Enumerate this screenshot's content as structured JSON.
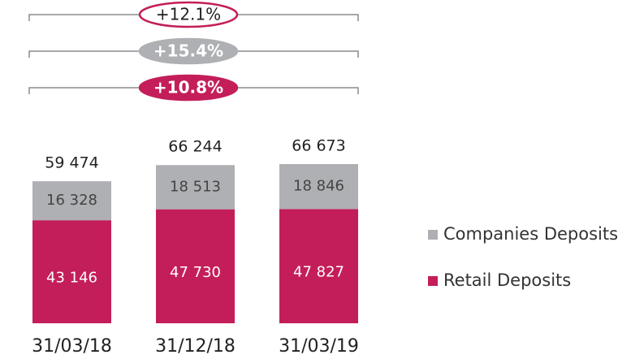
{
  "chart_data": {
    "type": "stacked-bar",
    "categories": [
      "31/03/18",
      "31/12/18",
      "31/03/19"
    ],
    "series": [
      {
        "name": "Retail Deposits",
        "color": "#c41e5a",
        "values": [
          43146,
          47730,
          47827
        ],
        "value_labels": [
          "43 146",
          "47 730",
          "47 827"
        ]
      },
      {
        "name": "Companies Deposits",
        "color": "#aeb0b3",
        "values": [
          16328,
          18513,
          18846
        ],
        "value_labels": [
          "16 328",
          "18 513",
          "18 846"
        ]
      }
    ],
    "totals": {
      "values": [
        59474,
        66244,
        66673
      ],
      "value_labels": [
        "59 474",
        "66 244",
        "66 673"
      ]
    },
    "annotations": [
      {
        "text": "+12.1%",
        "color": "#c41e5a",
        "filled": false
      },
      {
        "text": "+15.4%",
        "color": "#aeb0b3",
        "filled": true
      },
      {
        "text": "+10.8%",
        "color": "#c41e5a",
        "filled": true
      }
    ],
    "legend": "right"
  }
}
